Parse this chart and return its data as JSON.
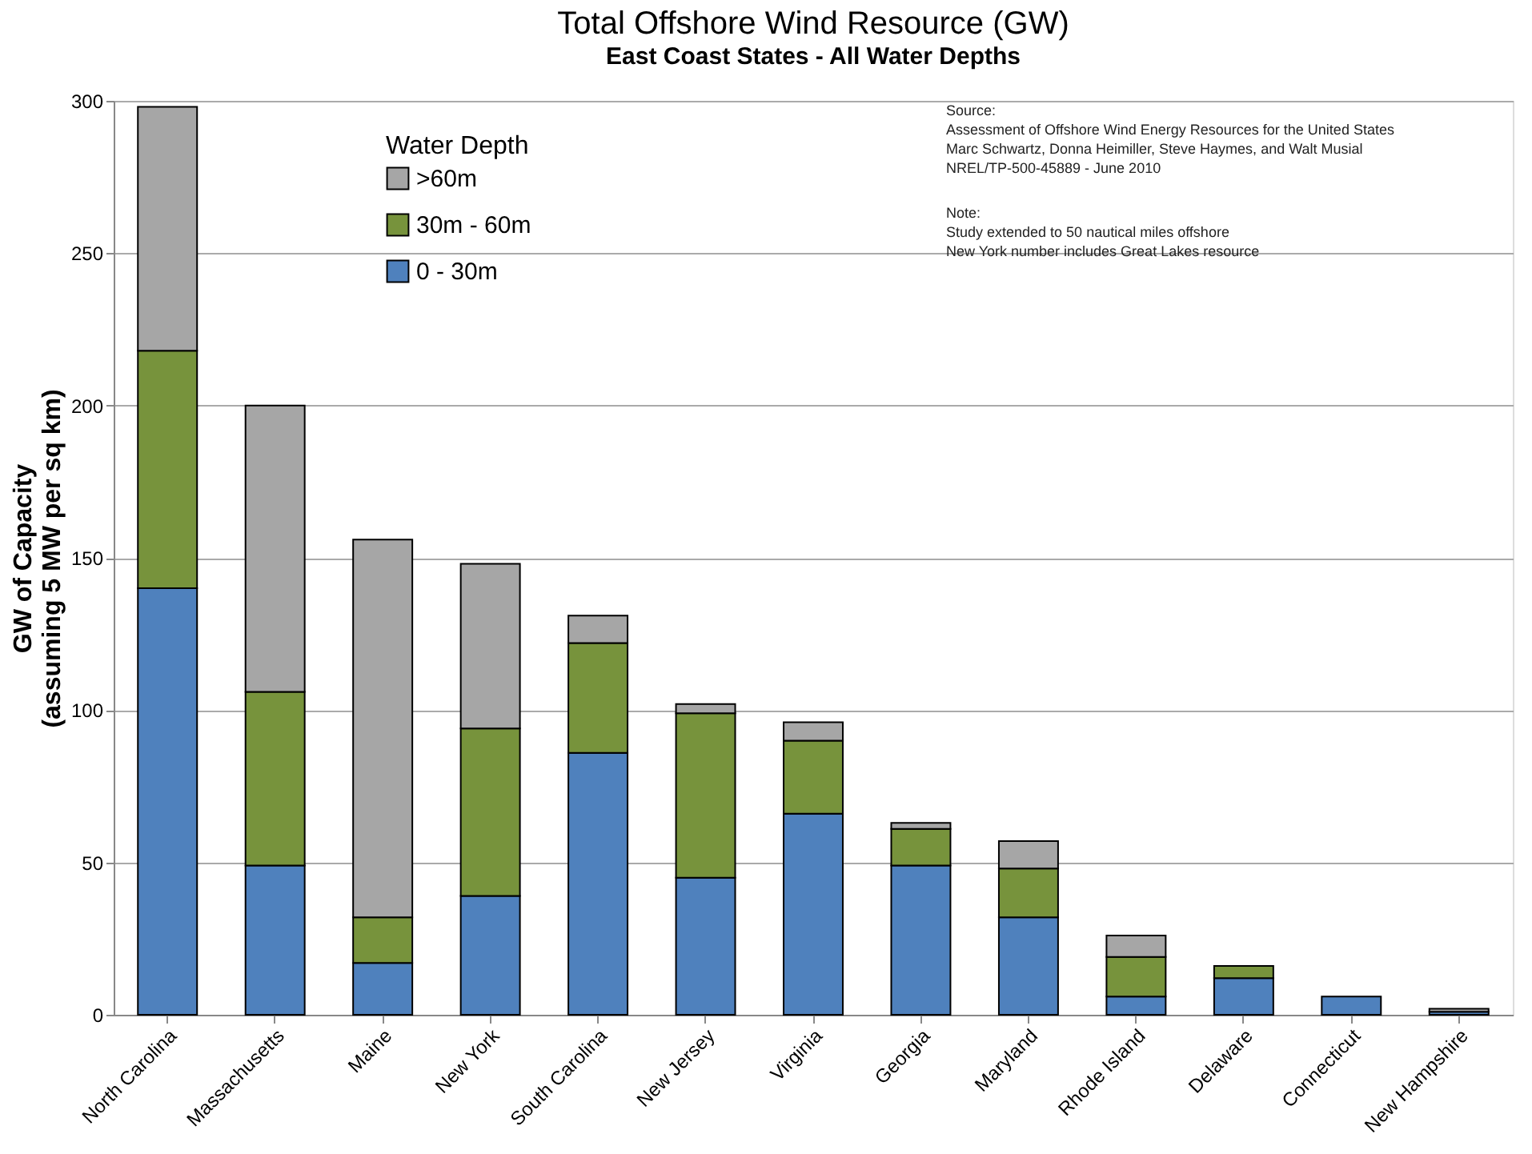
{
  "chart_data": {
    "type": "bar",
    "title": "Total Offshore Wind Resource (GW)",
    "subtitle": "East Coast States - All Water Depths",
    "ylabel": "GW of Capacity\n(assuming 5 MW per sq km)",
    "legend_title": "Water Depth",
    "categories": [
      "North Carolina",
      "Massachusetts",
      "Maine",
      "New York",
      "South Carolina",
      "New Jersey",
      "Virginia",
      "Georgia",
      "Maryland",
      "Rhode Island",
      "Delaware",
      "Connecticut",
      "New Hampshire"
    ],
    "stacked": true,
    "series": [
      {
        "name": "0 - 30m",
        "color": "#4f81bd",
        "values": [
          140,
          49,
          17,
          39,
          86,
          45,
          66,
          49,
          32,
          6,
          12,
          6,
          1
        ]
      },
      {
        "name": "30m - 60m",
        "color": "#77933c",
        "values": [
          78,
          57,
          15,
          55,
          36,
          54,
          24,
          12,
          16,
          13,
          4,
          0,
          0
        ]
      },
      {
        "name": ">60m",
        "color": "#a6a6a6",
        "values": [
          80,
          94,
          124,
          54,
          9,
          3,
          6,
          2,
          9,
          7,
          0,
          0,
          1
        ]
      }
    ],
    "ylim": [
      0,
      300
    ],
    "yticks": [
      0,
      50,
      100,
      150,
      200,
      250,
      300
    ],
    "grid": "y",
    "legend": "top left",
    "annotations": [
      "Source:\nAssessment of Offshore Wind Energy Resources for the United States\nMarc Schwartz, Donna Heimiller, Steve Haymes, and Walt Musial\nNREL/TP-500-45889 - June 2010",
      "Note:\nStudy extended to 50 nautical miles offshore\nNew York number includes Great Lakes resource"
    ]
  }
}
